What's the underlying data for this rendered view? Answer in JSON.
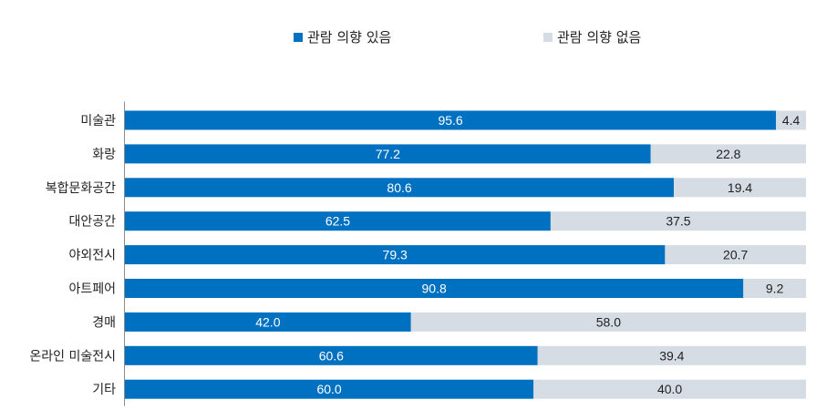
{
  "chart_data": {
    "type": "bar",
    "orientation": "horizontal",
    "stacked": true,
    "categories": [
      "미술관",
      "화랑",
      "복합문화공간",
      "대안공간",
      "야외전시",
      "아트페어",
      "경매",
      "온라인 미술전시",
      "기타"
    ],
    "series": [
      {
        "name": "관람 의향 있음",
        "color": "#0070c0",
        "values": [
          95.6,
          77.2,
          80.6,
          62.5,
          79.3,
          90.8,
          42.0,
          60.6,
          60.0
        ]
      },
      {
        "name": "관람 의향 없음",
        "color": "#d6dce4",
        "values": [
          4.4,
          22.8,
          19.4,
          37.5,
          20.7,
          9.2,
          58.0,
          39.4,
          40.0
        ]
      }
    ],
    "xlim": [
      0,
      100
    ],
    "legend_position": "top-center",
    "grid": false
  }
}
